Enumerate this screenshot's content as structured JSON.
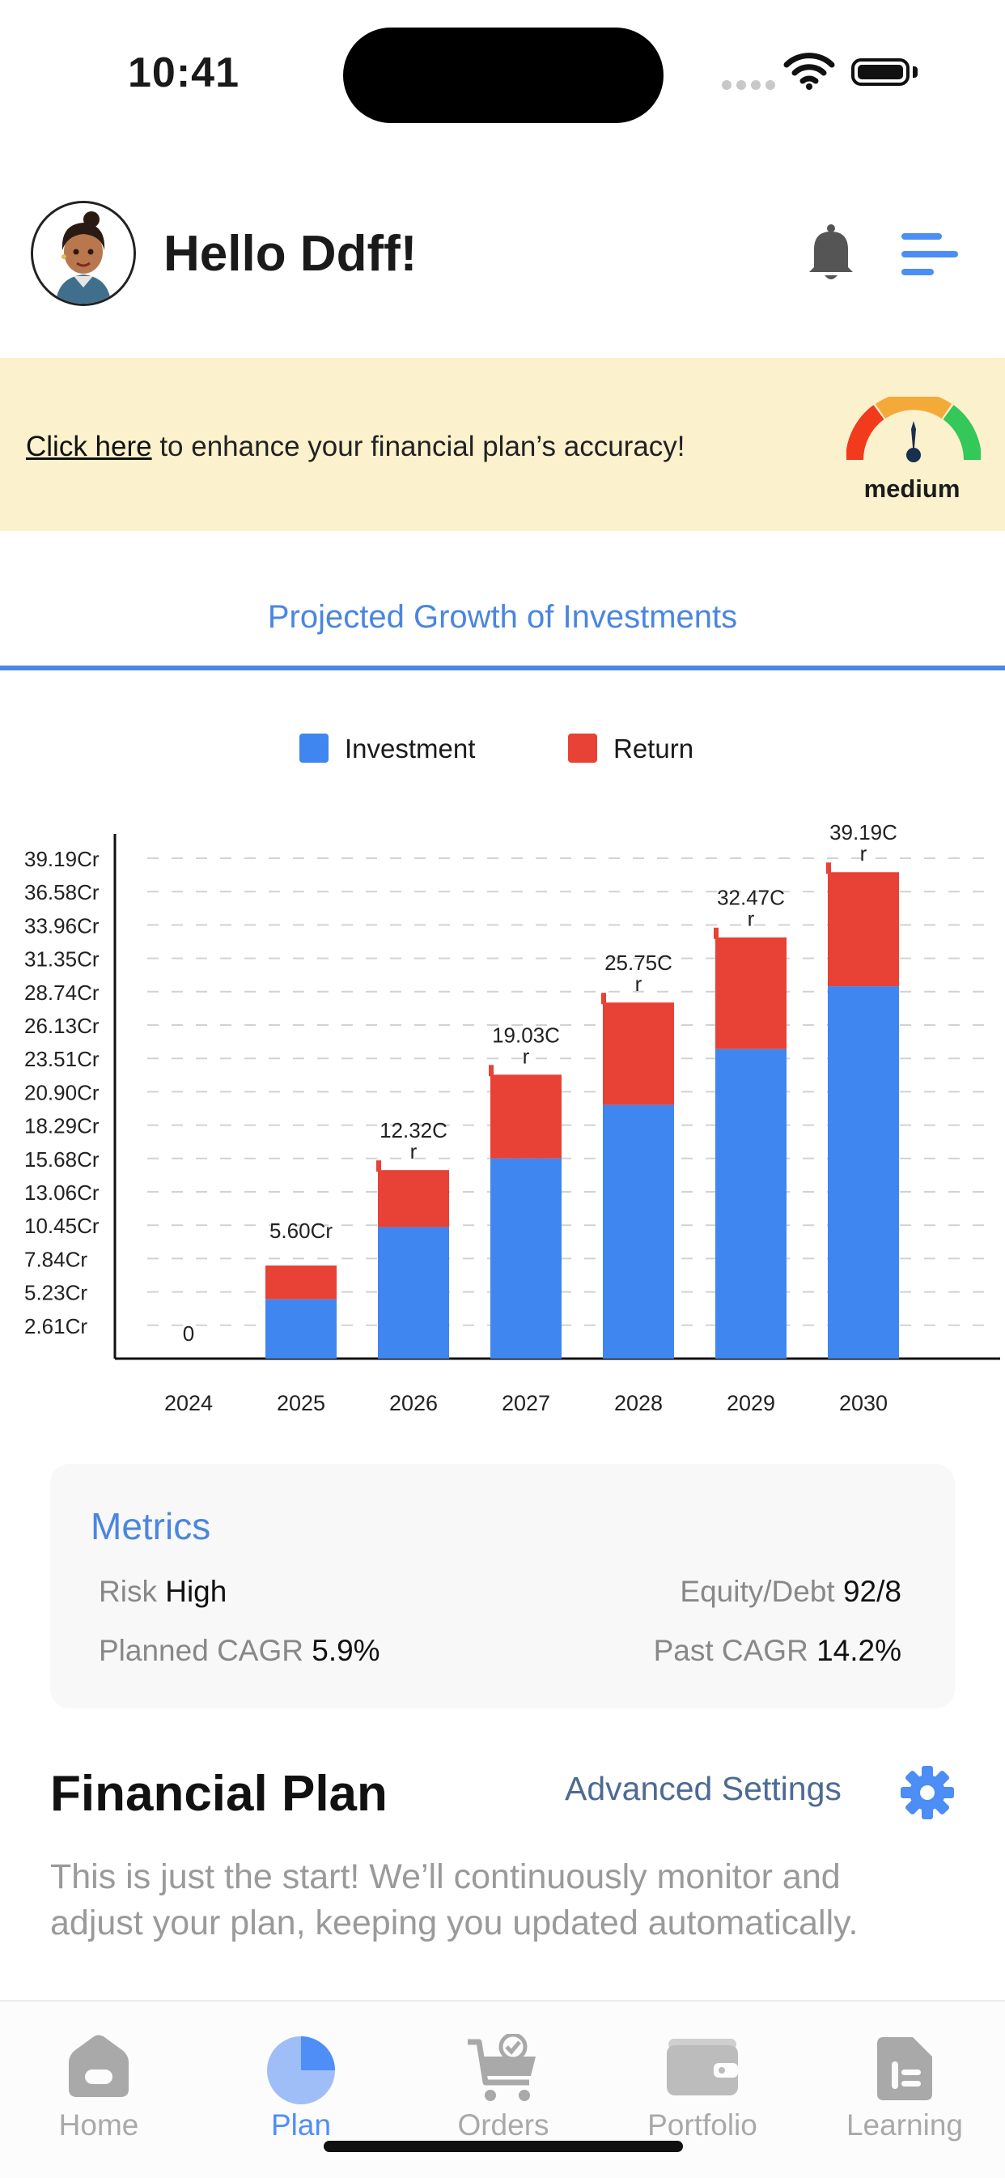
{
  "status_bar": {
    "time": "10:41"
  },
  "header": {
    "greeting": "Hello Ddff!"
  },
  "banner": {
    "link_text": "Click here",
    "text": " to enhance your financial plan’s accuracy!",
    "gauge_label": "medium",
    "gauge_level": "medium"
  },
  "chart_section": {
    "title": "Projected Growth of Investments"
  },
  "chart_data": {
    "type": "bar",
    "stacked": true,
    "title": "",
    "categories": [
      "2024",
      "2025",
      "2026",
      "2027",
      "2028",
      "2029",
      "2030"
    ],
    "series": [
      {
        "name": "Investment",
        "color": "#3f86f0",
        "values": [
          0,
          2.55,
          5.65,
          8.6,
          10.9,
          13.3,
          16.0
        ]
      },
      {
        "name": "Return",
        "color": "#e84135",
        "values": [
          0,
          1.45,
          2.45,
          3.6,
          4.4,
          4.8,
          4.9
        ]
      }
    ],
    "bar_labels": [
      "0",
      "5.60Cr",
      "12.32Cr",
      "19.03Cr",
      "25.75Cr",
      "32.47Cr",
      "39.19Cr"
    ],
    "y_tick_labels": [
      "2.61Cr",
      "5.23Cr",
      "7.84Cr",
      "10.45Cr",
      "13.06Cr",
      "15.68Cr",
      "18.29Cr",
      "20.90Cr",
      "23.51Cr",
      "26.13Cr",
      "28.74Cr",
      "31.35Cr",
      "33.96Cr",
      "36.58Cr",
      "39.19Cr"
    ],
    "ylim": [
      0,
      21.5
    ],
    "grid": true,
    "legend_position": "top-center"
  },
  "metrics": {
    "title": "Metrics",
    "risk_label": "Risk",
    "risk_value": "High",
    "equity_label": "Equity/Debt",
    "equity_value": "92/8",
    "planned_label": "Planned CAGR",
    "planned_value": "5.9%",
    "past_label": "Past CAGR",
    "past_value": "14.2%"
  },
  "plan": {
    "title": "Financial Plan",
    "advanced_settings": "Advanced Settings",
    "description": "This is just the start! We’ll continuously monitor and adjust your plan, keeping you updated automatically."
  },
  "tabs": [
    {
      "label": "Home",
      "icon": "home-icon",
      "active": false
    },
    {
      "label": "Plan",
      "icon": "pie-chart-icon",
      "active": true
    },
    {
      "label": "Orders",
      "icon": "cart-icon",
      "active": false
    },
    {
      "label": "Portfolio",
      "icon": "wallet-icon",
      "active": false
    },
    {
      "label": "Learning",
      "icon": "document-icon",
      "active": false
    }
  ],
  "colors": {
    "accent": "#4a86e0",
    "active_tab": "#4f8ef7",
    "inactive_tab": "#a9a9a9",
    "banner_bg": "#fbf1cd"
  }
}
